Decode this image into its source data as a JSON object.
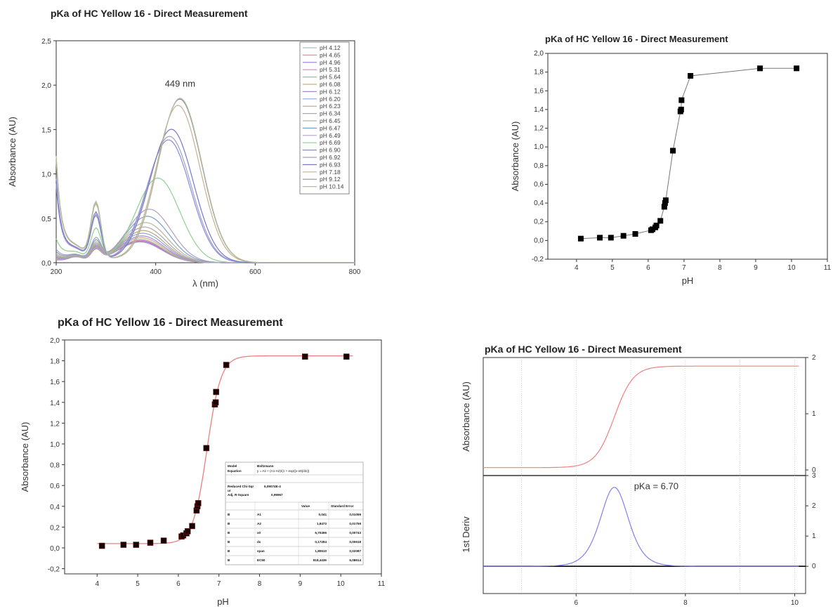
{
  "chart_data": [
    {
      "type": "line",
      "title": "pKa of HC Yellow 16 - Direct Measurement",
      "xlabel": "λ (nm)",
      "ylabel": "Absorbance (AU)",
      "xlim": [
        200,
        800
      ],
      "ylim": [
        0,
        2.5
      ],
      "xticks": [
        "200",
        "400",
        "600",
        "800"
      ],
      "yticks": [
        "0,0",
        "0,5",
        "1,0",
        "1,5",
        "2,0",
        "2,5"
      ],
      "annotation": "449 nm",
      "legend_position": "top-right",
      "series": [
        {
          "name": "pH 4.12",
          "color": "#b9b9b9",
          "peak": 0.23
        },
        {
          "name": "pH 4.65",
          "color": "#c9a0a0",
          "peak": 0.24
        },
        {
          "name": "pH 4.96",
          "color": "#9b76d6",
          "peak": 0.24
        },
        {
          "name": "pH 5.31",
          "color": "#e07ad6",
          "peak": 0.25
        },
        {
          "name": "pH 5.64",
          "color": "#9fbf8a",
          "peak": 0.26
        },
        {
          "name": "pH 6.08",
          "color": "#c8b08a",
          "peak": 0.28
        },
        {
          "name": "pH 6.12",
          "color": "#a888d8",
          "peak": 0.3
        },
        {
          "name": "pH 6.20",
          "color": "#8aa8d8",
          "peak": 0.33
        },
        {
          "name": "pH 6.23",
          "color": "#c0a27a",
          "peak": 0.36
        },
        {
          "name": "pH 6.34",
          "color": "#a9a9a9",
          "peak": 0.4
        },
        {
          "name": "pH 6.45",
          "color": "#b7b7a0",
          "peak": 0.45
        },
        {
          "name": "pH 6.47",
          "color": "#7aa0c8",
          "peak": 0.52
        },
        {
          "name": "pH 6.49",
          "color": "#b0a0c0",
          "peak": 0.6
        },
        {
          "name": "pH 6.69",
          "color": "#8ed08e",
          "peak": 0.95
        },
        {
          "name": "pH 6.90",
          "color": "#8a8ae0",
          "peak": 1.38
        },
        {
          "name": "pH 6.92",
          "color": "#a0a0c8",
          "peak": 1.42
        },
        {
          "name": "pH 6.93",
          "color": "#7878c8",
          "peak": 1.5
        },
        {
          "name": "pH 7.18",
          "color": "#c8b090",
          "peak": 1.77
        },
        {
          "name": "pH 9.12",
          "color": "#909090",
          "peak": 1.84
        },
        {
          "name": "pH 10.14",
          "color": "#b0c0a0",
          "peak": 1.85
        }
      ]
    },
    {
      "type": "line",
      "title": "pKa of HC Yellow 16 - Direct Measurement",
      "xlabel": "pH",
      "ylabel": "Absorbance (AU)",
      "xlim": [
        3.2,
        11
      ],
      "ylim": [
        -0.2,
        2.0
      ],
      "xticks": [
        4,
        5,
        6,
        7,
        8,
        9,
        10,
        11
      ],
      "yticks": [
        "-0,2",
        "0,0",
        "0,2",
        "0,4",
        "0,6",
        "0,8",
        "1,0",
        "1,2",
        "1,4",
        "1,6",
        "1,8",
        "2,0"
      ],
      "x": [
        4.12,
        4.65,
        4.96,
        5.31,
        5.64,
        6.08,
        6.12,
        6.2,
        6.23,
        6.34,
        6.45,
        6.47,
        6.49,
        6.69,
        6.9,
        6.92,
        6.93,
        7.18,
        9.12,
        10.14
      ],
      "y": [
        0.02,
        0.03,
        0.03,
        0.05,
        0.07,
        0.11,
        0.12,
        0.14,
        0.16,
        0.21,
        0.36,
        0.4,
        0.43,
        0.96,
        1.38,
        1.4,
        1.5,
        1.76,
        1.84,
        1.84
      ]
    },
    {
      "type": "scatter",
      "title": "pKa of HC Yellow 16 - Direct Measurement",
      "xlabel": "pH",
      "ylabel": "Absorbance (AU)",
      "xlim": [
        3.2,
        11
      ],
      "ylim": [
        -0.25,
        2.0
      ],
      "xticks": [
        4,
        5,
        6,
        7,
        8,
        9,
        10,
        11
      ],
      "yticks": [
        "-0,2",
        "0,0",
        "0,2",
        "0,4",
        "0,6",
        "0,8",
        "1,0",
        "1,2",
        "1,4",
        "1,6",
        "1,8",
        "2,0"
      ],
      "x": [
        4.12,
        4.65,
        4.96,
        5.31,
        5.64,
        6.08,
        6.12,
        6.2,
        6.23,
        6.34,
        6.45,
        6.47,
        6.49,
        6.69,
        6.9,
        6.92,
        6.93,
        7.18,
        9.12,
        10.14
      ],
      "y": [
        0.02,
        0.03,
        0.03,
        0.05,
        0.07,
        0.11,
        0.12,
        0.14,
        0.16,
        0.21,
        0.36,
        0.4,
        0.43,
        0.96,
        1.38,
        1.4,
        1.5,
        1.76,
        1.84,
        1.84
      ],
      "fit": {
        "A1": 0.041,
        "A2": 1.8473,
        "x0": 6.70496,
        "dx": 0.17284
      },
      "fit_color": "#e88080",
      "table": {
        "model_label": "Model",
        "model": "Boltzmann",
        "equation_label": "Equation",
        "equation": "y = A2 + (A1-A2)/(1 + exp((x-x0)/dx))",
        "chi_label": "Reduced Chi-Sqr",
        "chi_label2": "ur",
        "chi": "6,09074E-4",
        "r2_label": "Adj. R-Square",
        "r2": "0,99967",
        "col_value": "Value",
        "col_error": "Standard Error",
        "rows": [
          [
            "B",
            "A1",
            "0,041",
            "0,01059"
          ],
          [
            "B",
            "A2",
            "1,8473",
            "0,01759"
          ],
          [
            "B",
            "x0",
            "6,70496",
            "0,00743"
          ],
          [
            "B",
            "dx",
            "0,17284",
            "0,00618"
          ],
          [
            "B",
            "span",
            "1,80610",
            "0,02087"
          ],
          [
            "B",
            "EC50",
            "818,4436",
            "6,08614"
          ]
        ]
      }
    },
    {
      "type": "line",
      "title": "pKa of HC Yellow 16 - Direct Measurement",
      "ylabel_top": "Absorbance (AU)",
      "ylabel_bottom": "1st Deriv",
      "xlim": [
        4.3,
        10.2
      ],
      "xticks": [
        "6",
        "8",
        "10"
      ],
      "top_yticks": [
        "0",
        "1",
        "2"
      ],
      "bottom_yticks": [
        "0",
        "1",
        "2",
        "3"
      ],
      "top_color": "#f08080",
      "bottom_color": "#8080f0",
      "annotation": "pKa = 6.70",
      "pKa": 6.7
    }
  ]
}
